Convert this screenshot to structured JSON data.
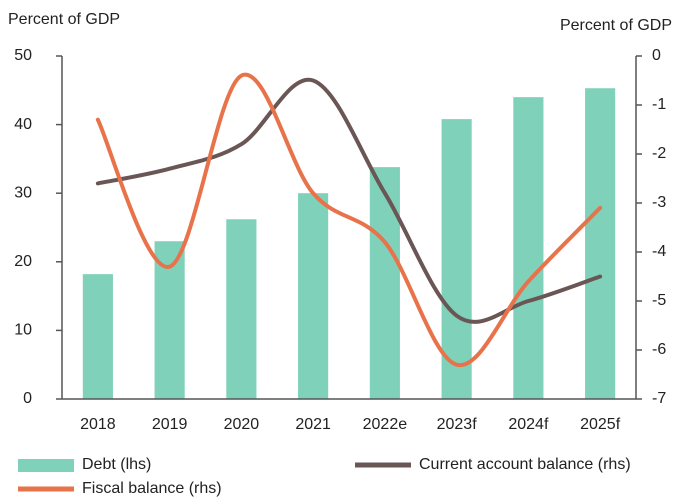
{
  "chart_data": {
    "type": "bar",
    "y_label": "Percent of GDP",
    "y2_label": "Percent of GDP",
    "categories": [
      "2018",
      "2019",
      "2020",
      "2021",
      "2022e",
      "2023f",
      "2024f",
      "2025f"
    ],
    "series": [
      {
        "name": "Debt (lhs)",
        "type": "bar",
        "color": "#7fd1b9",
        "values": [
          18.2,
          23,
          26.2,
          30,
          33.8,
          40.8,
          44,
          45.3
        ]
      },
      {
        "name": "Current account balance (rhs)",
        "type": "line",
        "axis": "y2",
        "color": "#6b5656",
        "values": [
          -2.6,
          -2.3,
          -1.8,
          -0.5,
          -2.8,
          -5.3,
          -5.0,
          -4.5
        ]
      },
      {
        "name": "Fiscal balance (rhs)",
        "type": "line",
        "axis": "y2",
        "color": "#e8734a",
        "values": [
          -1.3,
          -4.3,
          -0.4,
          -2.8,
          -3.8,
          -6.3,
          -4.6,
          -3.1
        ]
      }
    ],
    "ylim": [
      0,
      50
    ],
    "yticks": [
      0,
      10,
      20,
      30,
      40,
      50
    ],
    "y2lim": [
      -7,
      0
    ],
    "y2ticks": [
      0,
      -1,
      -2,
      -3,
      -4,
      -5,
      -6,
      -7
    ]
  }
}
